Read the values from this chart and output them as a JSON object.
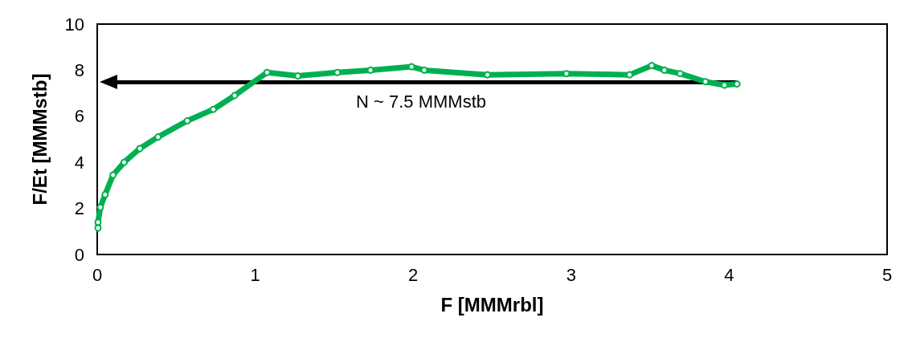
{
  "chart_data": {
    "type": "line",
    "xlabel": "F [MMMrbl]",
    "ylabel": "F/Et [MMMstb]",
    "x": [
      0.005,
      0.005,
      0.02,
      0.05,
      0.1,
      0.17,
      0.27,
      0.385,
      0.57,
      0.735,
      0.87,
      1.075,
      1.27,
      1.52,
      1.73,
      1.99,
      2.07,
      2.47,
      2.97,
      3.37,
      3.51,
      3.59,
      3.69,
      3.85,
      3.97,
      4.05
    ],
    "series": [
      {
        "color": "#00b050",
        "values": [
          1.15,
          1.4,
          2.05,
          2.6,
          3.45,
          4.0,
          4.6,
          5.1,
          5.8,
          6.3,
          6.9,
          7.9,
          7.75,
          7.9,
          8.0,
          8.15,
          8.0,
          7.8,
          7.85,
          7.8,
          8.2,
          8.0,
          7.85,
          7.5,
          7.35,
          7.4
        ]
      }
    ],
    "xlim": [
      0,
      5
    ],
    "xticks": [
      0,
      1,
      2,
      3,
      4,
      5
    ],
    "ylim": [
      0,
      10
    ],
    "yticks": [
      0,
      2,
      4,
      6,
      8,
      10
    ],
    "grid": false,
    "marker": "circle",
    "line_style": "solid",
    "ref_lines": [
      {
        "axis": "y",
        "value": 7.5,
        "label": "N ~ 7.5 MMMstb",
        "color": "#000000"
      }
    ]
  }
}
